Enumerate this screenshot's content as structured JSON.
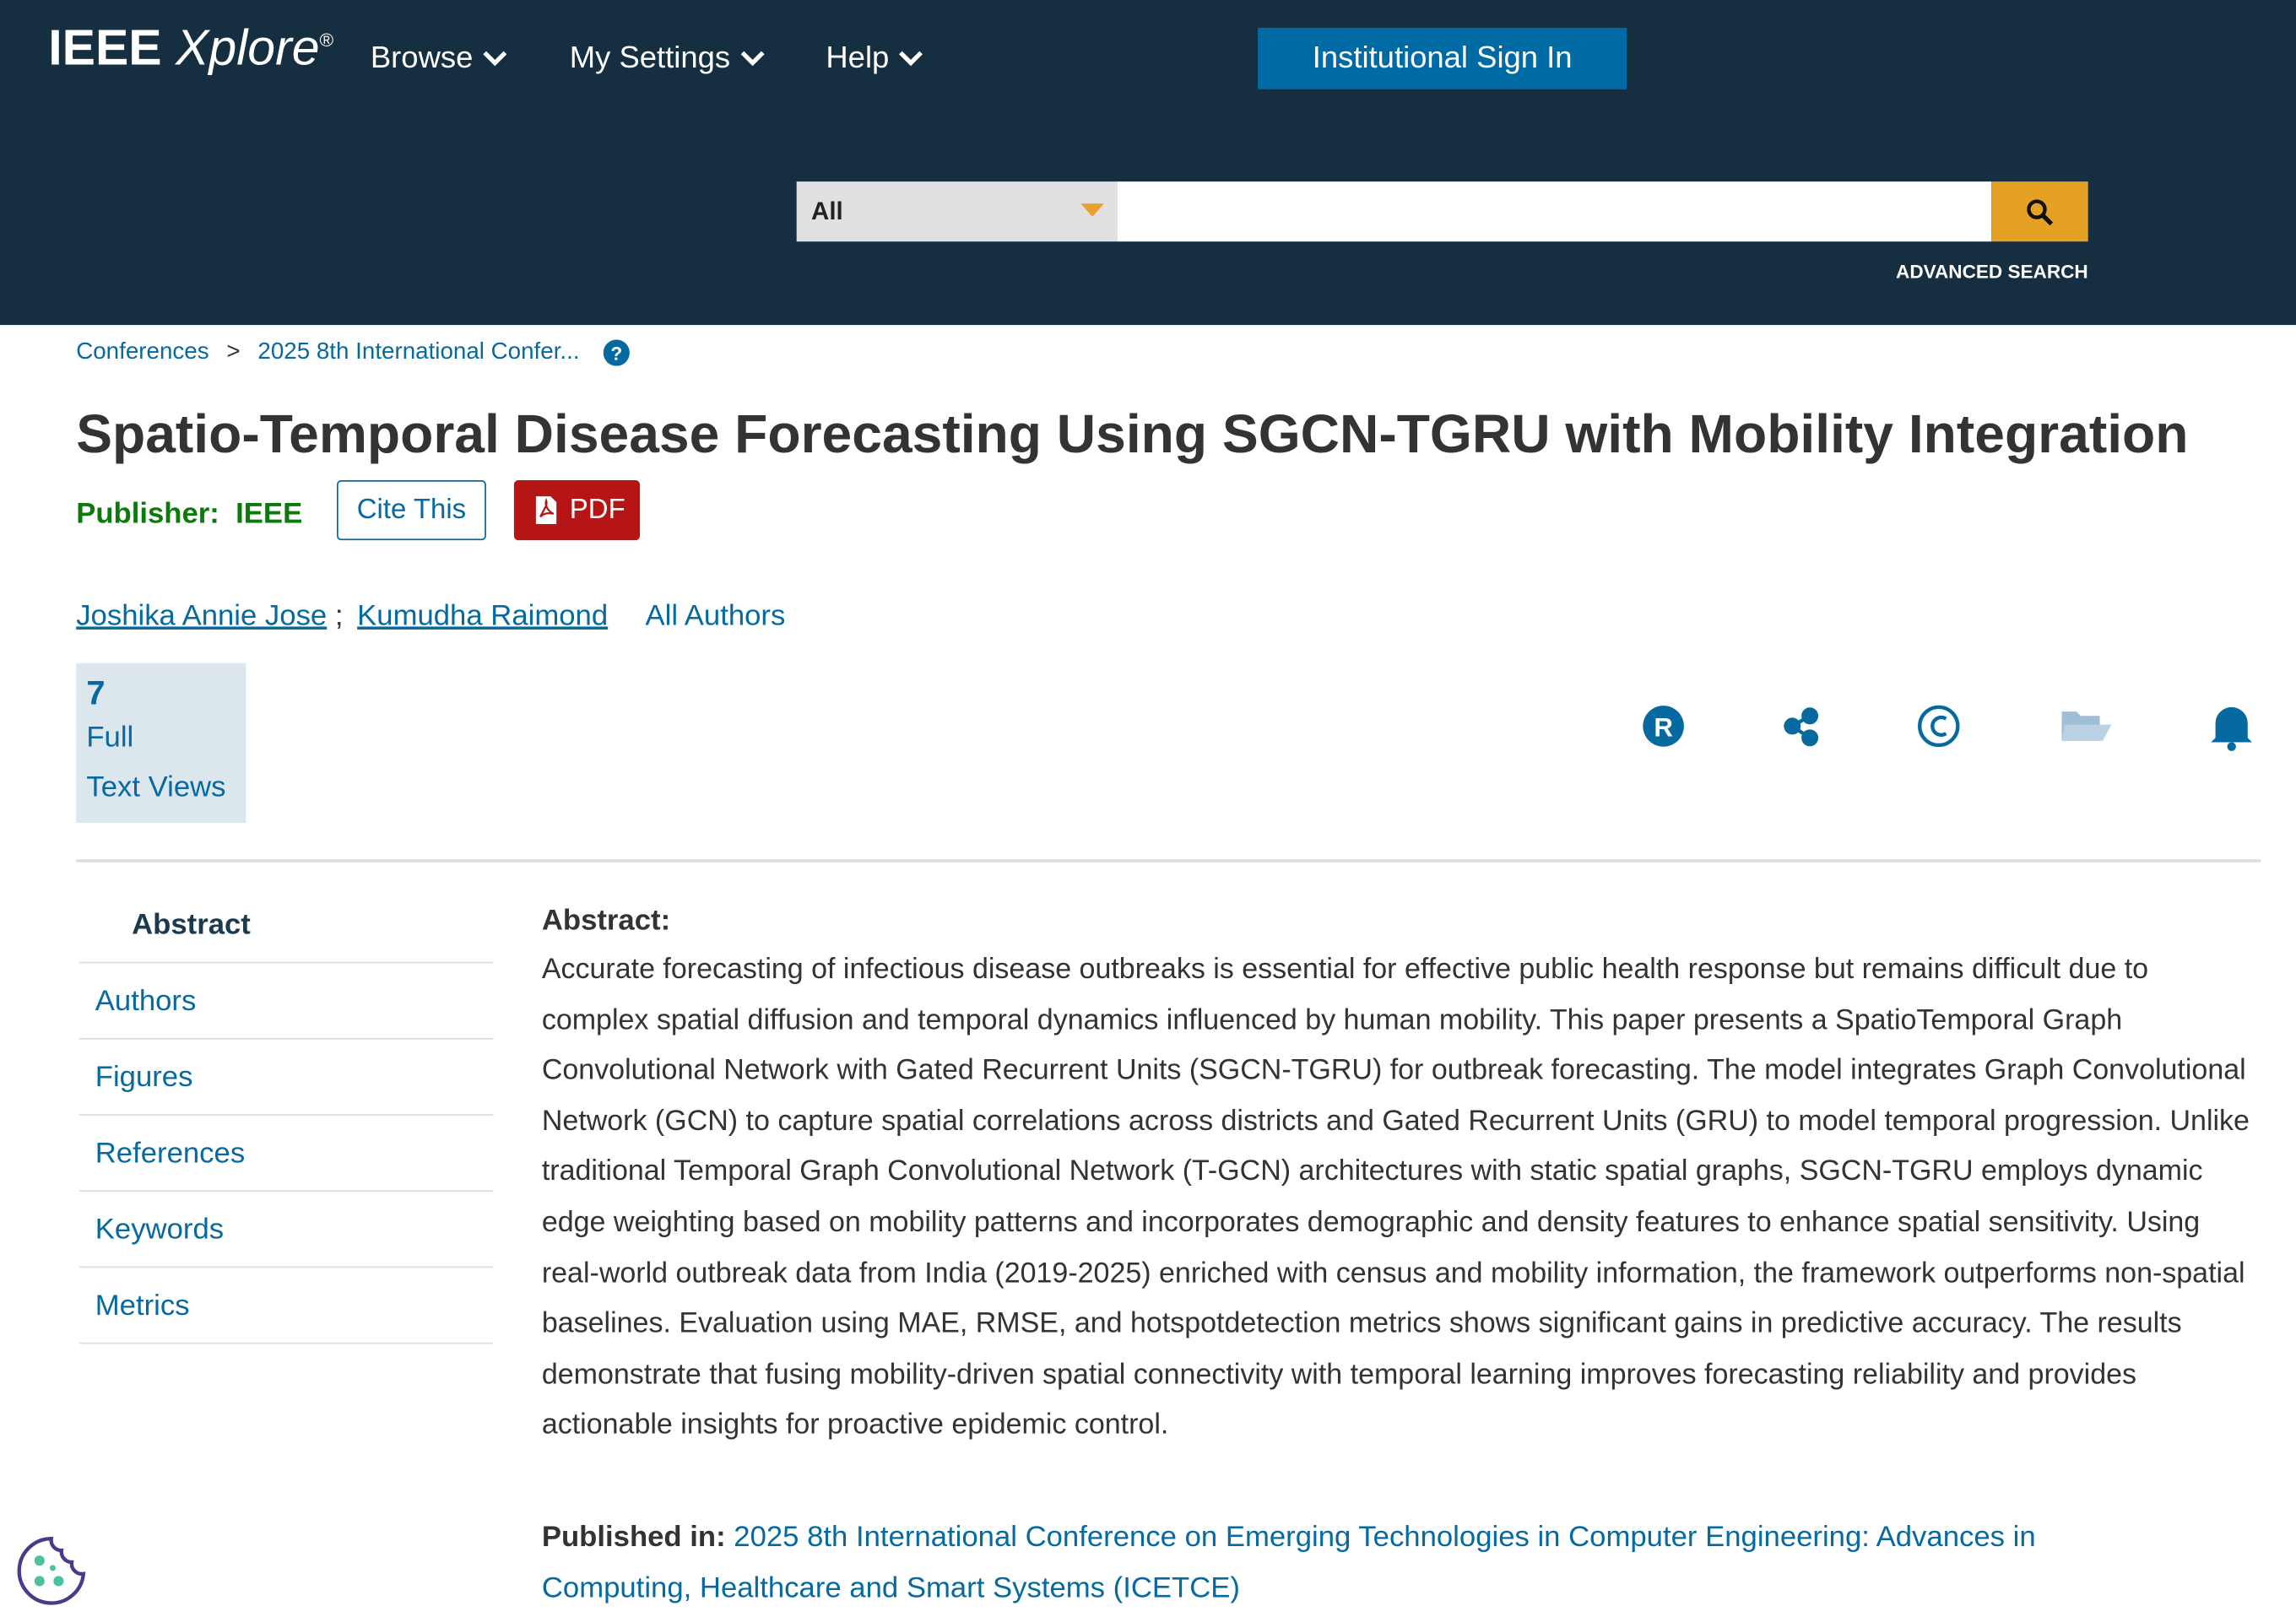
{
  "header": {
    "logo_main": "IEEE",
    "logo_italic": "Xplore",
    "logo_mark": "®",
    "nav": [
      "Browse",
      "My Settings",
      "Help"
    ],
    "sign_in": "Institutional Sign In",
    "search_scope": "All",
    "advanced_search": "ADVANCED SEARCH"
  },
  "breadcrumb": [
    "Conferences",
    ">",
    "2025 8th International Confer..."
  ],
  "title": "Spatio-Temporal Disease Forecasting Using SGCN-TGRU with Mobility Integration",
  "publisher": {
    "label": "Publisher:",
    "value": "IEEE"
  },
  "buttons": {
    "cite": "Cite This",
    "pdf": "PDF"
  },
  "authors": [
    "Joshika Annie Jose",
    ";",
    "Kumudha Raimond"
  ],
  "all_authors": "All Authors",
  "metric": {
    "count": "7",
    "line1": "Full",
    "line2": "Text Views"
  },
  "sidebar": [
    "Abstract",
    "Authors",
    "Figures",
    "References",
    "Keywords",
    "Metrics"
  ],
  "abstract": {
    "heading": "Abstract:",
    "text": "Accurate forecasting of infectious disease outbreaks is essential for effective public health response but remains difficult due to complex spatial diffusion and temporal dynamics influenced by human mobility. This paper presents a SpatioTemporal Graph Convolutional Network with Gated Recurrent Units (SGCN-TGRU) for outbreak forecasting. The model integrates Graph Convolutional Network (GCN) to capture spatial correlations across districts and Gated Recurrent Units (GRU) to model temporal progression. Unlike traditional Temporal Graph Convolutional Network (T-GCN) architectures with static spatial graphs, SGCN-TGRU employs dynamic edge weighting based on mobility patterns and incorporates demographic and density features to enhance spatial sensitivity. Using real-world outbreak data from India (2019-2025) enriched with census and mobility information, the framework outperforms non-spatial baselines. Evaluation using MAE, RMSE, and hotspotdetection metrics shows significant gains in predictive accuracy. The results demonstrate that fusing mobility-driven spatial connectivity with temporal learning improves forecasting reliability and provides actionable insights for proactive epidemic control."
  },
  "published_in": {
    "label": "Published in:",
    "value": "2025 8th International Conference on Emerging Technologies in Computer Engineering: Advances in Computing, Healthcare and Smart Systems (ICETCE)"
  }
}
